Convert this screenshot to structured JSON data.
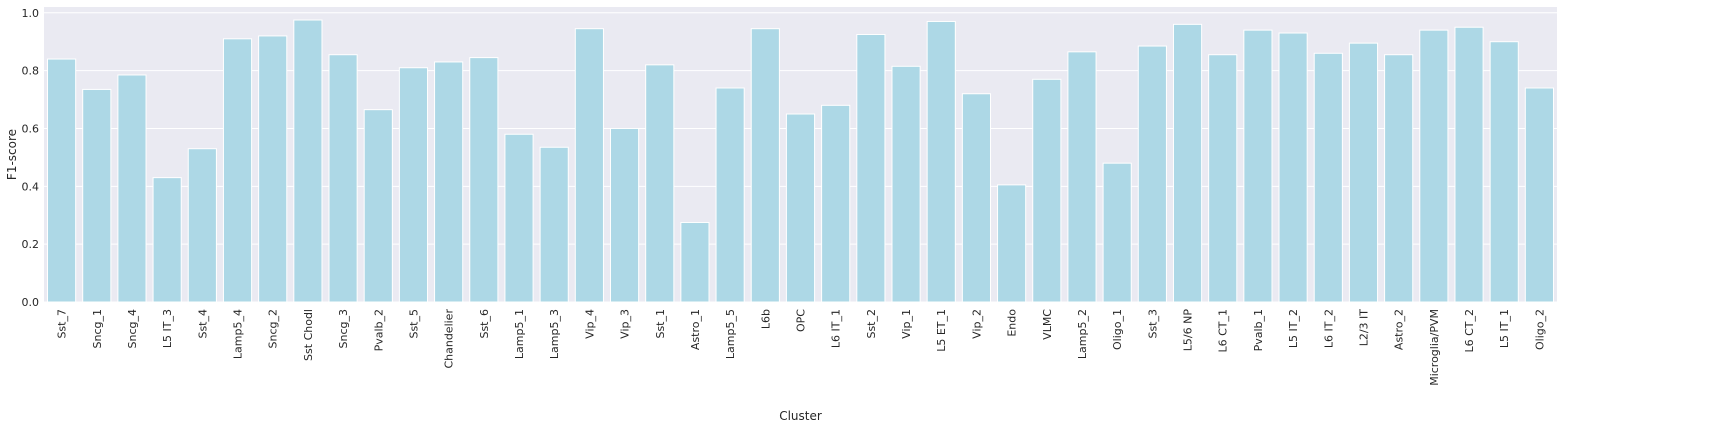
{
  "chart_data": {
    "type": "bar",
    "title": "",
    "xlabel": "Cluster",
    "ylabel": "F1-score",
    "ylim": [
      0,
      1.02
    ],
    "yticks": [
      0.0,
      0.2,
      0.4,
      0.6,
      0.8,
      1.0
    ],
    "ytick_labels": [
      "0.0",
      "0.2",
      "0.4",
      "0.6",
      "0.8",
      "1.0"
    ],
    "grid": true,
    "legend": "none",
    "bar_color": "#add8e6",
    "background_color": "#eaeaf2",
    "grid_color": "#ffffff",
    "categories": [
      "Sst_7",
      "Sncg_1",
      "Sncg_4",
      "L5 IT_3",
      "Sst_4",
      "Lamp5_4",
      "Sncg_2",
      "Sst Chodl",
      "Sncg_3",
      "Pvalb_2",
      "Sst_5",
      "Chandelier",
      "Sst_6",
      "Lamp5_1",
      "Lamp5_3",
      "Vip_4",
      "Vip_3",
      "Sst_1",
      "Astro_1",
      "Lamp5_5",
      "L6b",
      "OPC",
      "L6 IT_1",
      "Sst_2",
      "Vip_1",
      "L5 ET_1",
      "Vip_2",
      "Endo",
      "VLMC",
      "Lamp5_2",
      "Oligo_1",
      "Sst_3",
      "L5/6 NP",
      "L6 CT_1",
      "Pvalb_1",
      "L5 IT_2",
      "L6 IT_2",
      "L2/3 IT",
      "Astro_2",
      "Microglia/PVM",
      "L6 CT_2",
      "L5 IT_1",
      "Oligo_2"
    ],
    "values": [
      0.84,
      0.735,
      0.785,
      0.43,
      0.53,
      0.91,
      0.92,
      0.975,
      0.855,
      0.665,
      0.81,
      0.83,
      0.845,
      0.58,
      0.535,
      0.945,
      0.6,
      0.82,
      0.275,
      0.74,
      0.945,
      0.65,
      0.68,
      0.925,
      0.815,
      0.97,
      0.72,
      0.405,
      0.77,
      0.865,
      0.48,
      0.885,
      0.96,
      0.855,
      0.94,
      0.93,
      0.86,
      0.895,
      0.855,
      0.94,
      0.95,
      0.9,
      0.74
    ]
  }
}
